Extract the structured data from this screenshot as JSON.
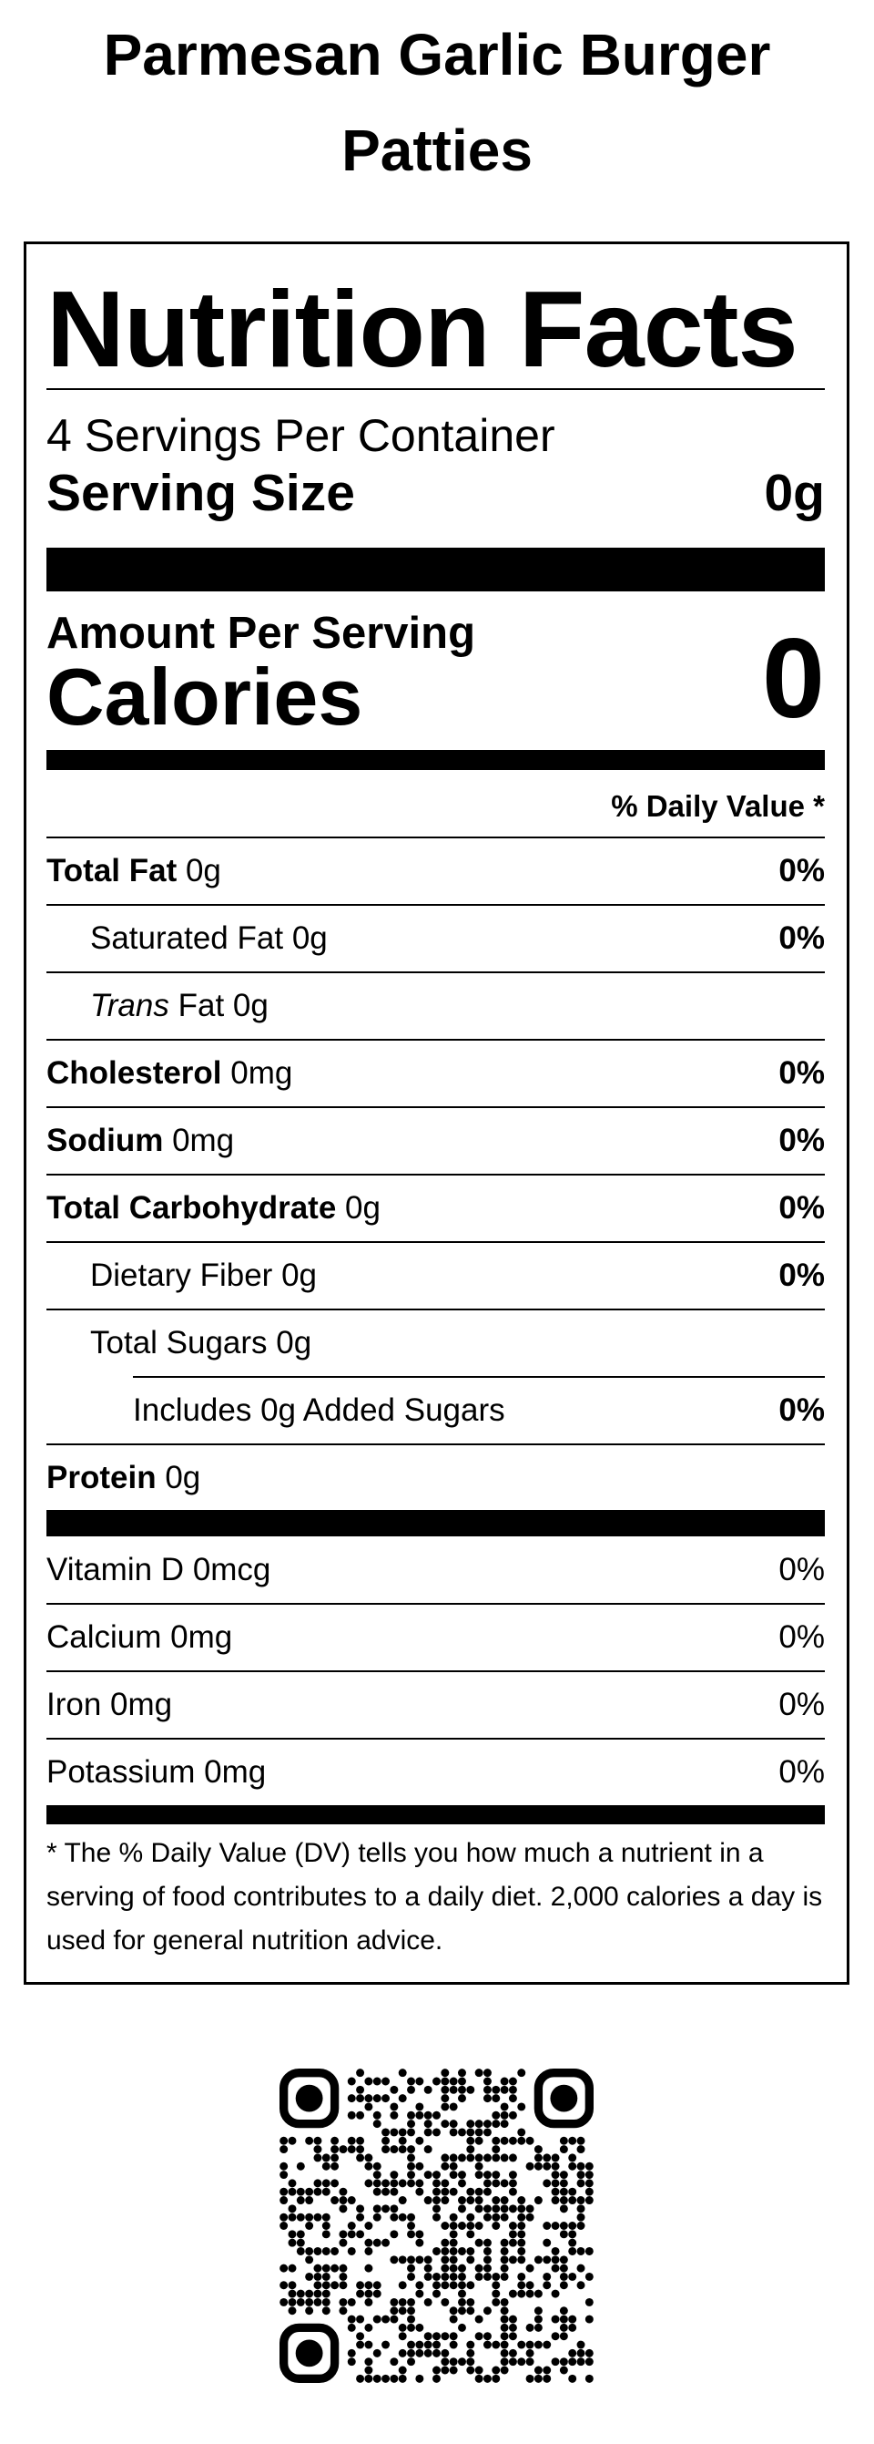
{
  "title": "Parmesan Garlic Burger Patties",
  "label": {
    "heading": "Nutrition Facts",
    "servings": "4 Servings Per Container",
    "serving_size": {
      "label": "Serving Size",
      "value": "0g"
    },
    "amount_per_serving": "Amount Per Serving",
    "calories": {
      "label": "Calories",
      "value": "0"
    },
    "daily_value_header": "% Daily Value *",
    "nutrients": [
      {
        "name": "Total Fat",
        "amount": "0g",
        "dv": "0%"
      },
      {
        "name": "Saturated Fat",
        "amount": "0g",
        "dv": "0%"
      },
      {
        "name": "Trans",
        "suffix": "Fat",
        "amount": "0g"
      },
      {
        "name": "Cholesterol",
        "amount": "0mg",
        "dv": "0%"
      },
      {
        "name": "Sodium",
        "amount": "0mg",
        "dv": "0%"
      },
      {
        "name": "Total Carbohydrate",
        "amount": "0g",
        "dv": "0%"
      },
      {
        "name": "Dietary Fiber",
        "amount": "0g",
        "dv": "0%"
      },
      {
        "name": "Total Sugars",
        "amount": "0g"
      },
      {
        "name": "Includes 0g Added Sugars",
        "dv": "0%"
      },
      {
        "name": "Protein",
        "amount": "0g"
      }
    ],
    "vitamins": [
      {
        "name": "Vitamin D",
        "amount": "0mcg",
        "dv": "0%"
      },
      {
        "name": "Calcium",
        "amount": "0mg",
        "dv": "0%"
      },
      {
        "name": "Iron",
        "amount": "0mg",
        "dv": "0%"
      },
      {
        "name": "Potassium",
        "amount": "0mg",
        "dv": "0%"
      }
    ],
    "footnote": "* The % Daily Value (DV) tells you how much a nutrient in a serving of food contributes to a daily diet. 2,000 calories a day is used for general nutrition advice."
  }
}
